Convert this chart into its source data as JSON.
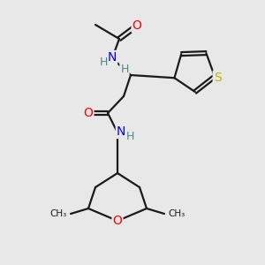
{
  "background_color": "#e8e8e8",
  "bond_color": "#1a1a1a",
  "bond_width": 1.6,
  "atom_colors": {
    "O": "#ff0000",
    "N": "#0000ee",
    "S": "#b8b800",
    "H": "#4a8a8a",
    "C": "#1a1a1a"
  },
  "fig_width": 3.0,
  "fig_height": 3.0,
  "dpi": 100
}
